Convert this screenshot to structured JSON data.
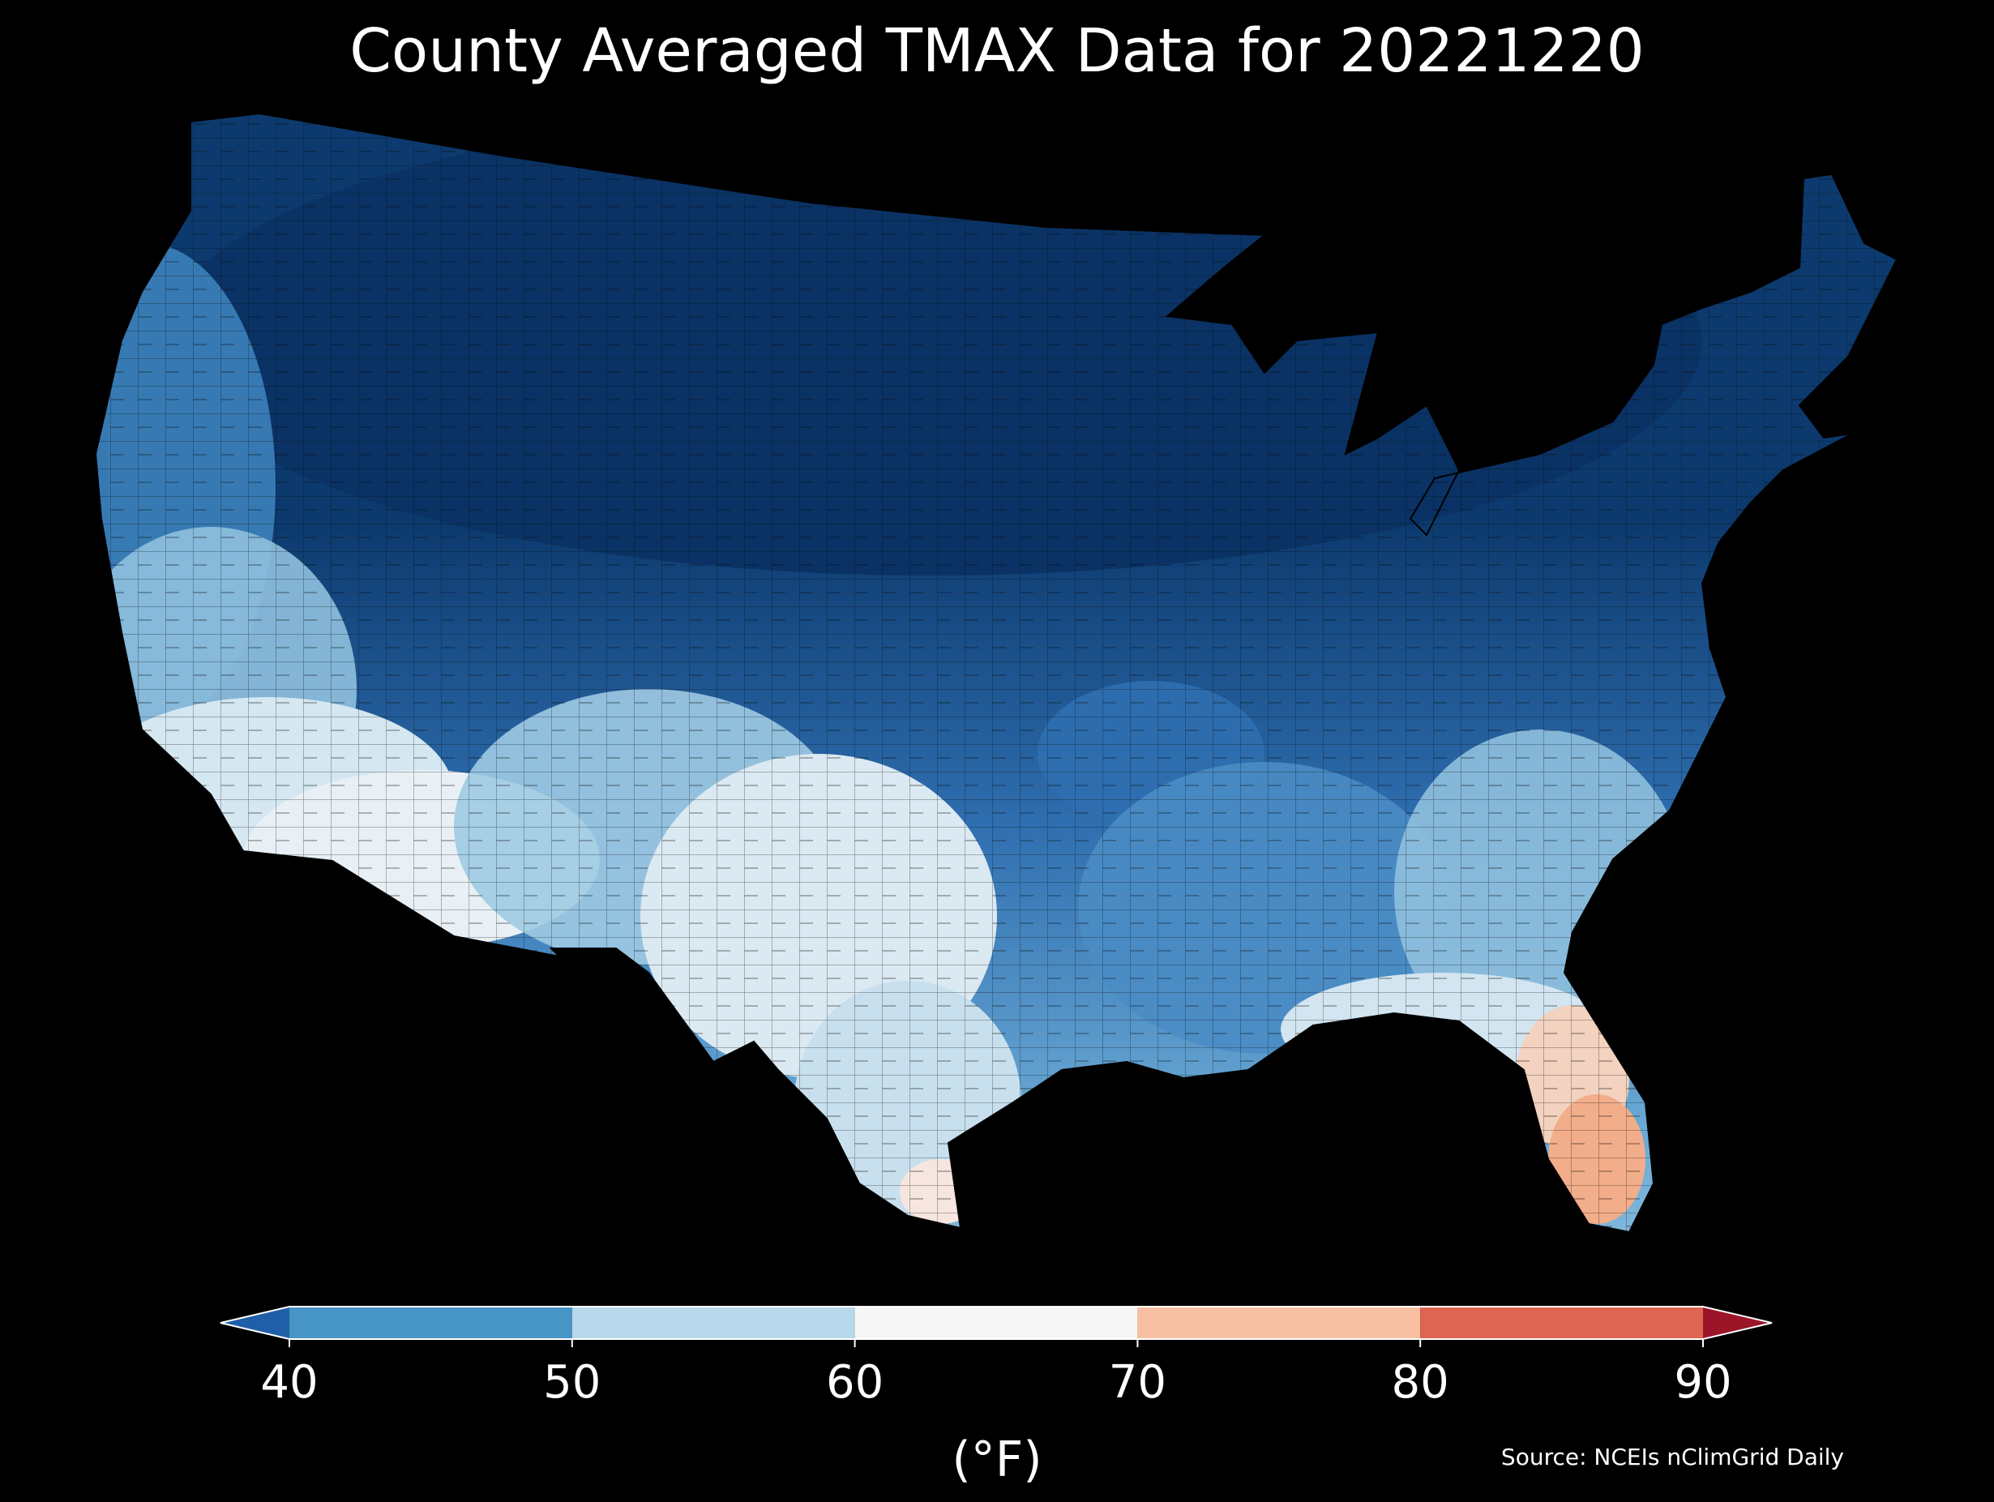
{
  "title": "County Averaged TMAX Data for 20221220",
  "source": "Source: NCEIs nClimGrid Daily",
  "legend": {
    "unit": "(°F)",
    "ticks": [
      "40",
      "50",
      "60",
      "70",
      "80",
      "90"
    ],
    "bins": [
      {
        "range": "<40",
        "color": "#1f5fa8"
      },
      {
        "range": "40-50",
        "color": "#4794c6"
      },
      {
        "range": "50-60",
        "color": "#b6d8ea"
      },
      {
        "range": "60-70",
        "color": "#f6f6f6"
      },
      {
        "range": "70-80",
        "color": "#f8c0a2"
      },
      {
        "range": "80-90",
        "color": "#de6551"
      },
      {
        "range": ">90",
        "color": "#9b1428"
      }
    ]
  },
  "map": {
    "region": "Contiguous United States",
    "background_color": "#000000",
    "shading": "county-level"
  }
}
